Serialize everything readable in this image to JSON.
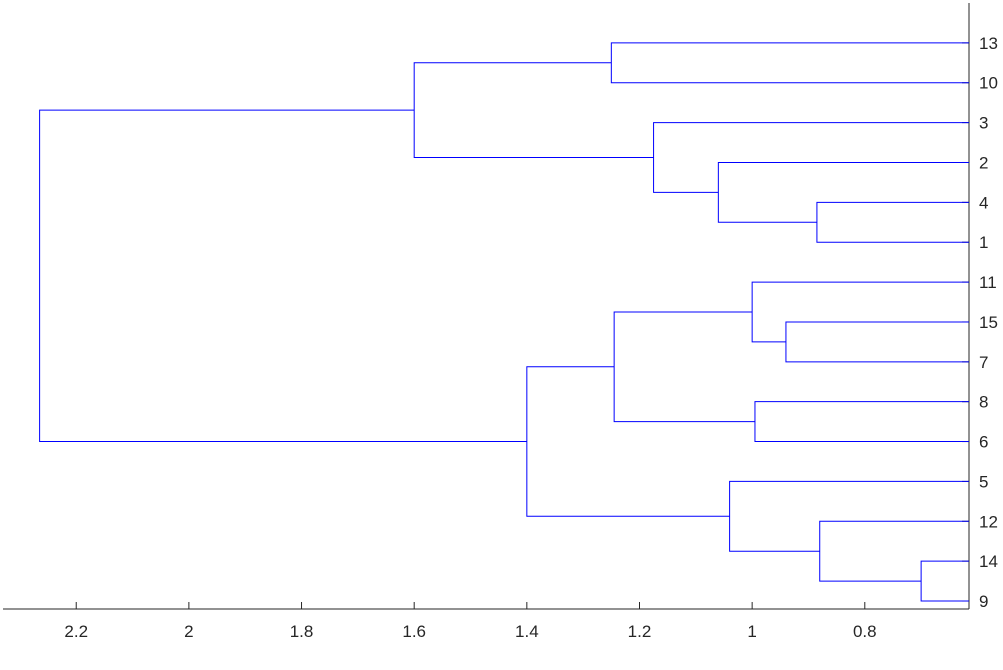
{
  "chart_data": {
    "type": "dendrogram",
    "orientation": "left",
    "xlim": [
      2.33,
      0.615
    ],
    "x_ticks": [
      2.2,
      2,
      1.8,
      1.6,
      1.4,
      1.2,
      1,
      0.8
    ],
    "x_tick_labels": [
      "2.2",
      "2",
      "1.8",
      "1.6",
      "1.4",
      "1.2",
      "1",
      "0.8"
    ],
    "leaf_order": [
      "13",
      "10",
      "3",
      "2",
      "4",
      "1",
      "11",
      "15",
      "7",
      "8",
      "6",
      "5",
      "12",
      "14",
      "9"
    ],
    "merges": [
      {
        "left": "L13",
        "right": "L10",
        "height": 1.25
      },
      {
        "left": "L4",
        "right": "L1",
        "height": 0.885
      },
      {
        "left": "L2",
        "right": "M2",
        "height": 1.06
      },
      {
        "left": "L3",
        "right": "M3",
        "height": 1.175
      },
      {
        "left": "M1",
        "right": "M4",
        "height": 1.6
      },
      {
        "left": "L15",
        "right": "L7",
        "height": 0.94
      },
      {
        "left": "L11",
        "right": "M6",
        "height": 1.0
      },
      {
        "left": "L8",
        "right": "L6",
        "height": 0.995
      },
      {
        "left": "M7",
        "right": "M8",
        "height": 1.245
      },
      {
        "left": "L14",
        "right": "L9",
        "height": 0.7
      },
      {
        "left": "L12",
        "right": "M10",
        "height": 0.88
      },
      {
        "left": "L5",
        "right": "M11",
        "height": 1.04
      },
      {
        "left": "M9",
        "right": "M12",
        "height": 1.4
      },
      {
        "left": "M5",
        "right": "M13",
        "height": 2.265
      }
    ],
    "link_color": "#0000ff",
    "axis_color": "#262626",
    "grid": false
  }
}
